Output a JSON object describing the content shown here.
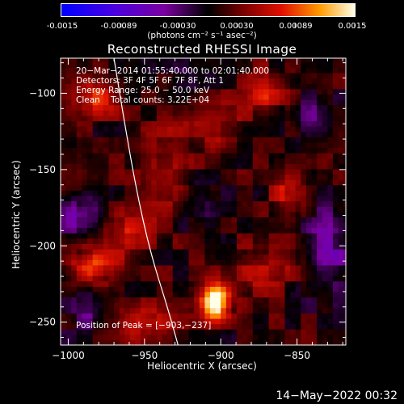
{
  "colorbar": {
    "ticks": [
      "-0.0015",
      "-0.00089",
      "-0.00030",
      "0.00030",
      "0.00089",
      "0.0015"
    ],
    "tick_values": [
      -0.0015,
      -0.00089,
      -0.0003,
      0.0003,
      0.00089,
      0.0015
    ],
    "range": [
      -0.0015,
      0.0015
    ],
    "units_label": "(photons cm⁻² s⁻¹ asec⁻²)"
  },
  "chart_data": {
    "type": "heatmap",
    "title": "Reconstructed RHESSI Image",
    "xlabel": "Heliocentric X (arcsec)",
    "ylabel": "Heliocentric Y (arcsec)",
    "xlim": [
      -1005,
      -818
    ],
    "ylim": [
      -265,
      -77
    ],
    "x_ticks": [
      -1000,
      -950,
      -900,
      -850
    ],
    "x_tick_labels": [
      "−1000",
      "−950",
      "−900",
      "−850"
    ],
    "y_ticks": [
      -100,
      -150,
      -200,
      -250
    ],
    "y_tick_labels": [
      "−100",
      "−150",
      "−200",
      "−250"
    ],
    "peak": {
      "x": -903,
      "y": -237
    },
    "limb_curve": [
      [
        -970,
        -77
      ],
      [
        -963,
        -120
      ],
      [
        -955,
        -165
      ],
      [
        -946,
        -205
      ],
      [
        -935,
        -240
      ],
      [
        -928,
        -265
      ]
    ],
    "annotations": [
      "20−Mar−2014 01:55:40.000 to 02:01:40.000",
      "Detectors: 3F 4F 5F 6F 7F 8F, Att 1",
      "Energy Range: 25.0 − 50.0 keV",
      "Clean    Total counts: 3.22E+04"
    ],
    "peak_label": "Position of Peak = [−903,−237]",
    "blobs": [
      {
        "x": -903,
        "y": -236,
        "sx": 7,
        "sy": 8,
        "amp": 0.0016
      },
      {
        "x": -985,
        "y": -214,
        "sx": 10,
        "sy": 9,
        "amp": 0.0008
      },
      {
        "x": -982,
        "y": -103,
        "sx": 10,
        "sy": 10,
        "amp": 0.0006
      },
      {
        "x": -965,
        "y": -195,
        "sx": 12,
        "sy": 14,
        "amp": 0.0005
      },
      {
        "x": -935,
        "y": -155,
        "sx": 10,
        "sy": 20,
        "amp": 0.0005
      },
      {
        "x": -905,
        "y": -120,
        "sx": 14,
        "sy": 12,
        "amp": 0.00045
      },
      {
        "x": -870,
        "y": -100,
        "sx": 10,
        "sy": 10,
        "amp": 0.0005
      },
      {
        "x": -855,
        "y": -165,
        "sx": 9,
        "sy": 12,
        "amp": 0.0005
      },
      {
        "x": -870,
        "y": -215,
        "sx": 14,
        "sy": 10,
        "amp": 0.00045
      },
      {
        "x": -1000,
        "y": -160,
        "sx": 8,
        "sy": 14,
        "amp": 0.0004
      },
      {
        "x": -950,
        "y": -250,
        "sx": 14,
        "sy": 10,
        "amp": 0.0004
      },
      {
        "x": -992,
        "y": -180,
        "sx": 12,
        "sy": 12,
        "amp": -0.0007
      },
      {
        "x": -985,
        "y": -240,
        "sx": 10,
        "sy": 12,
        "amp": -0.0004
      },
      {
        "x": -830,
        "y": -200,
        "sx": 12,
        "sy": 20,
        "amp": -0.0006
      },
      {
        "x": -840,
        "y": -115,
        "sx": 10,
        "sy": 10,
        "amp": -0.0004
      },
      {
        "x": -925,
        "y": -95,
        "sx": 10,
        "sy": 10,
        "amp": -0.0003
      },
      {
        "x": -915,
        "y": -180,
        "sx": 10,
        "sy": 12,
        "amp": -0.0003
      }
    ]
  },
  "footer": {
    "timestamp": "14−May−2022 00:32"
  }
}
